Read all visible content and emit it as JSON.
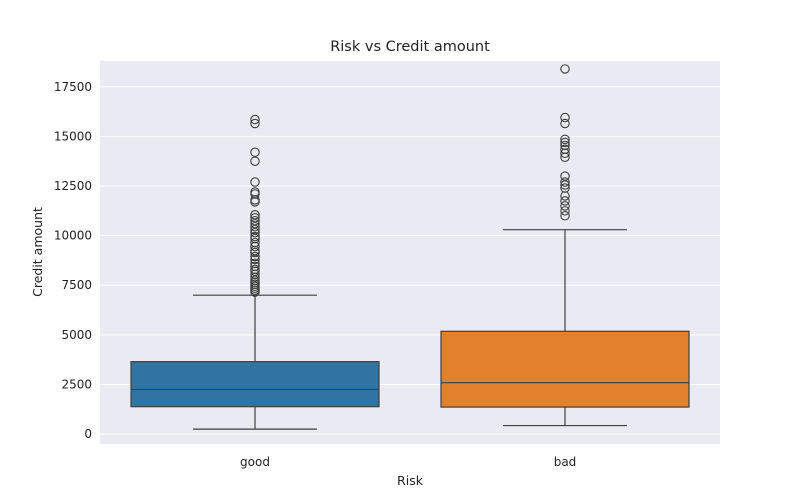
{
  "chart_data": {
    "type": "box",
    "title": "Risk vs Credit amount",
    "xlabel": "Risk",
    "ylabel": "Credit amount",
    "ylim": [
      -500,
      18800
    ],
    "yticks": [
      0,
      2500,
      5000,
      7500,
      10000,
      12500,
      15000,
      17500
    ],
    "grid": true,
    "categories": [
      "good",
      "bad"
    ],
    "colors": {
      "good": "#3274a1",
      "bad": "#e1812c",
      "plot_background": "#eaeaf2"
    },
    "boxes": [
      {
        "name": "good",
        "whisker_low": 250,
        "q1": 1380,
        "median": 2250,
        "q3": 3650,
        "whisker_high": 7000,
        "outliers": [
          15850,
          15650,
          14200,
          13750,
          12700,
          12200,
          12100,
          11800,
          11700,
          11050,
          10900,
          10750,
          10600,
          10450,
          10300,
          10150,
          9950,
          9850,
          9650,
          9450,
          9250,
          9150,
          8950,
          8800,
          8600,
          8450,
          8300,
          8200,
          8050,
          7900,
          7750,
          7650,
          7550,
          7450,
          7350,
          7250,
          7150
        ]
      },
      {
        "name": "bad",
        "whisker_low": 430,
        "q1": 1360,
        "median": 2590,
        "q3": 5180,
        "whisker_high": 10300,
        "outliers": [
          18400,
          15950,
          15650,
          14850,
          14700,
          14550,
          14350,
          14150,
          13950,
          13000,
          12700,
          12550,
          12400,
          12000,
          11750,
          11500,
          11250,
          11000
        ]
      }
    ]
  }
}
